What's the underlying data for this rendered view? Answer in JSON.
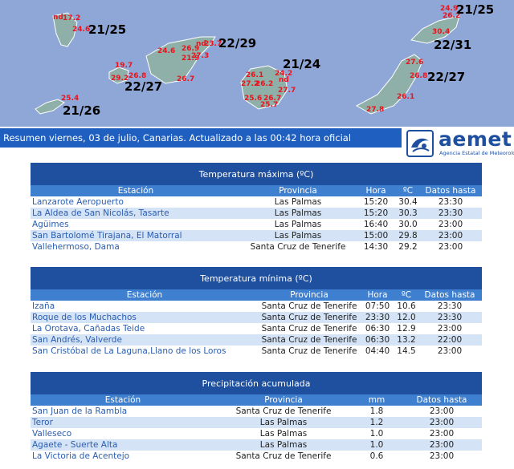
{
  "map": {
    "temps": [
      "nd",
      "17.2",
      "24.6",
      "19.7",
      "29.2",
      "26.8",
      "24.6",
      "26.9",
      "nd",
      "23.7",
      "21.9",
      "27.3",
      "26.7",
      "25.4",
      "26.1",
      "24.2",
      "nd",
      "27.2",
      "26.2",
      "27.7",
      "25.6",
      "26.7",
      "25.7",
      "24.9",
      "26.2",
      "30.4",
      "27.6",
      "26.8",
      "26.1",
      "27.8"
    ],
    "ranges": [
      "21/25",
      "22/29",
      "21/24",
      "22/27",
      "21/26",
      "21/25",
      "22/31",
      "22/27"
    ]
  },
  "status": "Resumen viernes, 03 de julio, Canarias. Actualizado a las 00:42 hora oficial",
  "logo": {
    "brand": "aemet",
    "subtitle": "Agencia Estatal de Meteorología"
  },
  "tmax": {
    "title": "Temperatura máxima (ºC)",
    "headers": [
      "Estación",
      "Provincia",
      "Hora",
      "ºC",
      "Datos hasta"
    ],
    "rows": [
      [
        "Lanzarote Aeropuerto",
        "Las Palmas",
        "15:20",
        "30.4",
        "23:30"
      ],
      [
        "La Aldea de San Nicolás, Tasarte",
        "Las Palmas",
        "15:20",
        "30.3",
        "23:30"
      ],
      [
        "Agüimes",
        "Las Palmas",
        "16:40",
        "30.0",
        "23:00"
      ],
      [
        "San Bartolomé Tirajana, El Matorral",
        "Las Palmas",
        "15:00",
        "29.8",
        "23:00"
      ],
      [
        "Vallehermoso, Dama",
        "Santa Cruz de Tenerife",
        "14:30",
        "29.2",
        "23:00"
      ]
    ]
  },
  "tmin": {
    "title": "Temperatura mínima (ºC)",
    "headers": [
      "Estación",
      "Provincia",
      "Hora",
      "ºC",
      "Datos hasta"
    ],
    "rows": [
      [
        "Izaña",
        "Santa Cruz de Tenerife",
        "07:50",
        "10.6",
        "23:30"
      ],
      [
        "Roque de los Muchachos",
        "Santa Cruz de Tenerife",
        "23:30",
        "12.0",
        "23:30"
      ],
      [
        "La Orotava, Cañadas Teide",
        "Santa Cruz de Tenerife",
        "06:30",
        "12.9",
        "23:00"
      ],
      [
        "San Andrés, Valverde",
        "Santa Cruz de Tenerife",
        "06:30",
        "13.2",
        "22:00"
      ],
      [
        "San Cristóbal de La Laguna,Llano de los Loros",
        "Santa Cruz de Tenerife",
        "04:40",
        "14.5",
        "23:00"
      ]
    ]
  },
  "prec": {
    "title": "Precipitación acumulada",
    "headers": [
      "Estación",
      "Provincia",
      "mm",
      "Datos hasta"
    ],
    "rows": [
      [
        "San Juan de la Rambla",
        "Santa Cruz de Tenerife",
        "1.8",
        "23:00"
      ],
      [
        "Teror",
        "Las Palmas",
        "1.2",
        "23:00"
      ],
      [
        "Valleseco",
        "Las Palmas",
        "1.0",
        "23:00"
      ],
      [
        "Agaete - Suerte Alta",
        "Las Palmas",
        "1.0",
        "23:00"
      ],
      [
        "La Victoria de Acentejo",
        "Santa Cruz de Tenerife",
        "0.6",
        "23:00"
      ]
    ]
  }
}
